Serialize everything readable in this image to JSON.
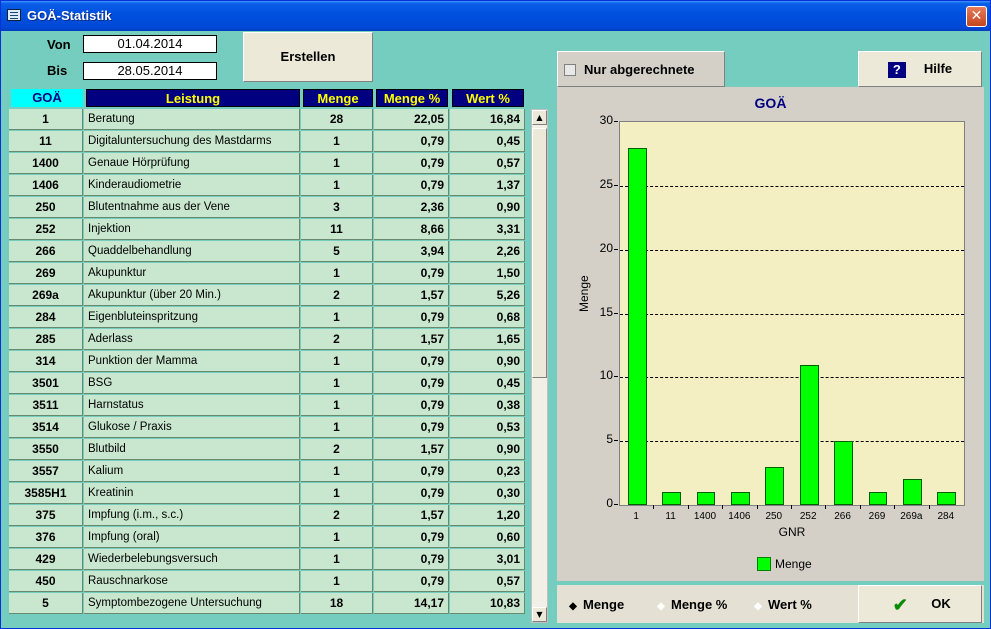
{
  "window": {
    "title": "GOÄ-Statistik",
    "close_glyph": "✕"
  },
  "filter": {
    "von_label": "Von",
    "von_value": "01.04.2014",
    "bis_label": "Bis",
    "bis_value": "28.05.2014",
    "create_button": "Erstellen"
  },
  "table": {
    "headers": {
      "gnr": "GOÄ",
      "leistung": "Leistung",
      "menge": "Menge",
      "menge_pct": "Menge %",
      "wert_pct": "Wert %"
    },
    "rows": [
      [
        "1",
        "Beratung",
        "28",
        "22,05",
        "16,84"
      ],
      [
        "11",
        "Digitaluntersuchung des Mastdarms",
        "1",
        "0,79",
        "0,45"
      ],
      [
        "1400",
        "Genaue Hörprüfung",
        "1",
        "0,79",
        "0,57"
      ],
      [
        "1406",
        "Kinderaudiometrie",
        "1",
        "0,79",
        "1,37"
      ],
      [
        "250",
        "Blutentnahme aus der Vene",
        "3",
        "2,36",
        "0,90"
      ],
      [
        "252",
        "Injektion",
        "11",
        "8,66",
        "3,31"
      ],
      [
        "266",
        "Quaddelbehandlung",
        "5",
        "3,94",
        "2,26"
      ],
      [
        "269",
        "Akupunktur",
        "1",
        "0,79",
        "1,50"
      ],
      [
        "269a",
        "Akupunktur (über 20 Min.)",
        "2",
        "1,57",
        "5,26"
      ],
      [
        "284",
        "Eigenbluteinspritzung",
        "1",
        "0,79",
        "0,68"
      ],
      [
        "285",
        "Aderlass",
        "2",
        "1,57",
        "1,65"
      ],
      [
        "314",
        "Punktion der Mamma",
        "1",
        "0,79",
        "0,90"
      ],
      [
        "3501",
        "BSG",
        "1",
        "0,79",
        "0,45"
      ],
      [
        "3511",
        "Harnstatus",
        "1",
        "0,79",
        "0,38"
      ],
      [
        "3514",
        "Glukose / Praxis",
        "1",
        "0,79",
        "0,53"
      ],
      [
        "3550",
        "Blutbild",
        "2",
        "1,57",
        "0,90"
      ],
      [
        "3557",
        "Kalium",
        "1",
        "0,79",
        "0,23"
      ],
      [
        "3585H1",
        "Kreatinin",
        "1",
        "0,79",
        "0,30"
      ],
      [
        "375",
        "Impfung (i.m., s.c.)",
        "2",
        "1,57",
        "1,20"
      ],
      [
        "376",
        "Impfung (oral)",
        "1",
        "0,79",
        "0,60"
      ],
      [
        "429",
        "Wiederbelebungsversuch",
        "1",
        "0,79",
        "3,01"
      ],
      [
        "450",
        "Rauschnarkose",
        "1",
        "0,79",
        "0,57"
      ],
      [
        "5",
        "Symptombezogene Untersuchung",
        "18",
        "14,17",
        "10,83"
      ]
    ]
  },
  "options": {
    "only_billed_label": "Nur abgerechnete",
    "only_billed_checked": false
  },
  "help_button": {
    "icon": "?",
    "label": "Hilfe"
  },
  "ok_button": {
    "label": "OK"
  },
  "radio": {
    "selected": "Menge",
    "options": [
      "Menge",
      "Menge %",
      "Wert %"
    ]
  },
  "chart_data": {
    "type": "bar",
    "title": "GOÄ",
    "xlabel": "GNR",
    "ylabel": "Menge",
    "ylim": [
      0,
      30
    ],
    "yticks": [
      0,
      5,
      10,
      15,
      20,
      25,
      30
    ],
    "categories": [
      "1",
      "11",
      "1400",
      "1406",
      "250",
      "252",
      "266",
      "269",
      "269a",
      "284"
    ],
    "series": [
      {
        "name": "Menge",
        "values": [
          28,
          1,
          1,
          1,
          3,
          11,
          5,
          1,
          2,
          1
        ],
        "color": "#00ff00"
      }
    ],
    "grid": "horizontal dashed",
    "legend": "bottom-center",
    "background": "#f3efc3"
  }
}
